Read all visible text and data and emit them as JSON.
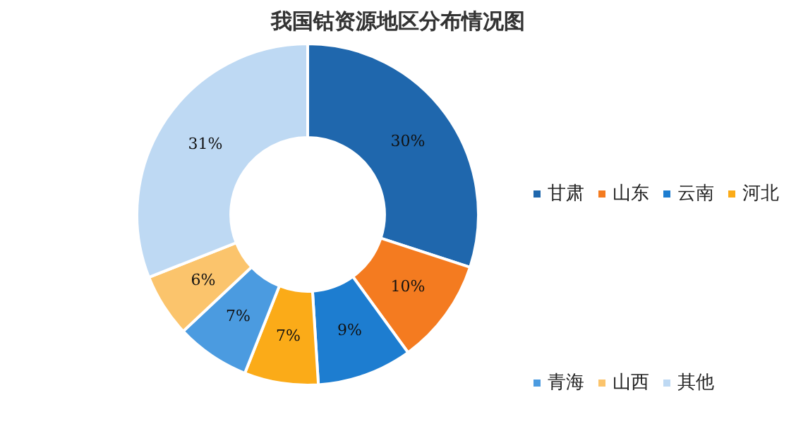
{
  "chart_data": {
    "type": "donut",
    "title": "我国钴资源地区分布情况图",
    "categories": [
      "甘肃",
      "山东",
      "云南",
      "河北",
      "青海",
      "山西",
      "其他"
    ],
    "values": [
      30,
      10,
      9,
      7,
      7,
      6,
      31
    ],
    "colors": [
      "#1f67ad",
      "#f47b20",
      "#1d7dd0",
      "#fbab18",
      "#4b9be0",
      "#fbc46c",
      "#bed9f3"
    ],
    "value_labels": [
      "30%",
      "10%",
      "9%",
      "7%",
      "7%",
      "6%",
      "31%"
    ],
    "legend": "right"
  }
}
